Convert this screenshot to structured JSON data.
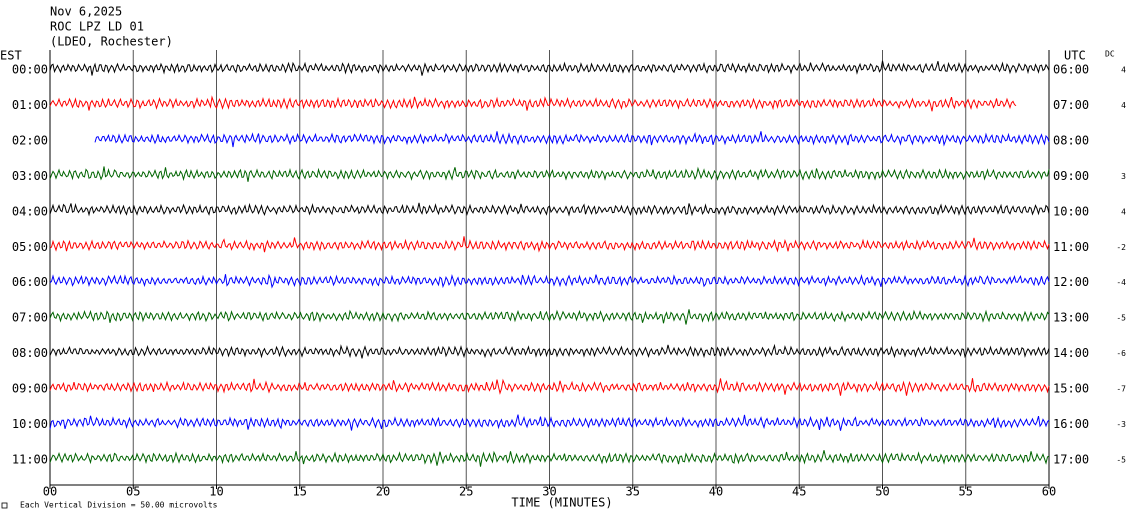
{
  "header": {
    "date": "Nov 6,2025",
    "station": "ROC LPZ LD 01",
    "network": "(LDEO, Rochester)"
  },
  "left_axis_title": "EST",
  "right_axis_title": "UTC",
  "dc_title": "DC",
  "x_axis": {
    "label": "TIME (MINUTES)",
    "xlim": [
      0,
      60
    ],
    "xticks": [
      {
        "value": 0,
        "label": "00"
      },
      {
        "value": 5,
        "label": "05"
      },
      10,
      15,
      20,
      25,
      30,
      35,
      40,
      45,
      50,
      55,
      60
    ]
  },
  "footer": "Each Vertical Division =   50.00 microvolts",
  "rows": [
    {
      "est": "00:00",
      "utc": "06:00",
      "dc": "4",
      "color": "#000000",
      "start": 0,
      "end": 60
    },
    {
      "est": "01:00",
      "utc": "07:00",
      "dc": "4",
      "color": "#ff0000",
      "start": 0,
      "end": 58.1
    },
    {
      "est": "02:00",
      "utc": "08:00",
      "dc": null,
      "color": "#0000ff",
      "start": 2.7,
      "end": 60
    },
    {
      "est": "03:00",
      "utc": "09:00",
      "dc": "3",
      "color": "#006400",
      "start": 0,
      "end": 60
    },
    {
      "est": "04:00",
      "utc": "10:00",
      "dc": "4",
      "color": "#000000",
      "start": 0,
      "end": 60
    },
    {
      "est": "05:00",
      "utc": "11:00",
      "dc": "-2",
      "color": "#ff0000",
      "start": 0,
      "end": 60
    },
    {
      "est": "06:00",
      "utc": "12:00",
      "dc": "-4",
      "color": "#0000ff",
      "start": 0,
      "end": 60
    },
    {
      "est": "07:00",
      "utc": "13:00",
      "dc": "-5",
      "color": "#006400",
      "start": 0,
      "end": 60
    },
    {
      "est": "08:00",
      "utc": "14:00",
      "dc": "-6",
      "color": "#000000",
      "start": 0,
      "end": 60
    },
    {
      "est": "09:00",
      "utc": "15:00",
      "dc": "-7",
      "color": "#ff0000",
      "start": 0,
      "end": 60
    },
    {
      "est": "10:00",
      "utc": "16:00",
      "dc": "-3",
      "color": "#0000ff",
      "start": 0,
      "end": 60
    },
    {
      "est": "11:00",
      "utc": "17:00",
      "dc": "-5",
      "color": "#006400",
      "start": 0,
      "end": 60
    }
  ]
}
